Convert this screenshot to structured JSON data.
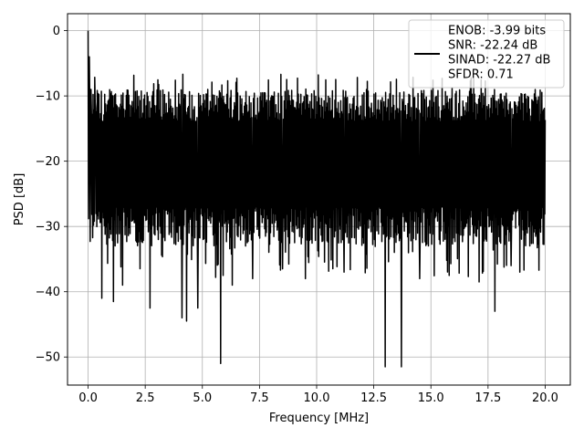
{
  "chart_data": {
    "type": "line",
    "title": "",
    "xlabel": "Frequency [MHz]",
    "ylabel": "PSD [dB]",
    "xlim": [
      -0.9,
      21.1
    ],
    "ylim": [
      -54.3,
      2.6
    ],
    "xticks": [
      0.0,
      2.5,
      5.0,
      7.5,
      10.0,
      12.5,
      15.0,
      17.5,
      20.0
    ],
    "xtick_labels": [
      "0.0",
      "2.5",
      "5.0",
      "7.5",
      "10.0",
      "12.5",
      "15.0",
      "17.5",
      "20.0"
    ],
    "yticks": [
      0,
      -10,
      -20,
      -30,
      -40,
      -50
    ],
    "ytick_labels": [
      "0",
      "−10",
      "−20",
      "−30",
      "−40",
      "−50"
    ],
    "grid": true,
    "legend_position": "top-right",
    "legend_lines": [
      "ENOB: -3.99 bits",
      "SNR: -22.24 dB",
      "SINAD: -22.27 dB",
      "SFDR: 0.71"
    ],
    "line_color": "#000000",
    "series": [
      {
        "x_start": 0.0,
        "x_end": 20.0,
        "noise_band": {
          "typical_upper": -12,
          "typical_center": -20,
          "typical_lower": -29
        },
        "peaks": [
          {
            "x": 0.0,
            "y": 0.0
          },
          {
            "x": 0.05,
            "y": -4.0
          },
          {
            "x": 0.12,
            "y": -9.0
          },
          {
            "x": 0.3,
            "y": -11.0
          }
        ],
        "dips": [
          {
            "x": 0.6,
            "y": -41.0
          },
          {
            "x": 1.1,
            "y": -41.5
          },
          {
            "x": 1.5,
            "y": -39.0
          },
          {
            "x": 2.7,
            "y": -42.5
          },
          {
            "x": 4.1,
            "y": -44.0
          },
          {
            "x": 4.3,
            "y": -44.5
          },
          {
            "x": 4.8,
            "y": -42.5
          },
          {
            "x": 5.8,
            "y": -51.0
          },
          {
            "x": 6.3,
            "y": -39.0
          },
          {
            "x": 7.2,
            "y": -38.0
          },
          {
            "x": 8.5,
            "y": -36.5
          },
          {
            "x": 9.5,
            "y": -38.0
          },
          {
            "x": 11.2,
            "y": -37.0
          },
          {
            "x": 13.0,
            "y": -51.5
          },
          {
            "x": 13.7,
            "y": -51.5
          },
          {
            "x": 14.5,
            "y": -38.0
          },
          {
            "x": 15.8,
            "y": -37.5
          },
          {
            "x": 17.1,
            "y": -38.5
          },
          {
            "x": 17.8,
            "y": -43.0
          },
          {
            "x": 18.5,
            "y": -36.0
          }
        ]
      }
    ]
  }
}
